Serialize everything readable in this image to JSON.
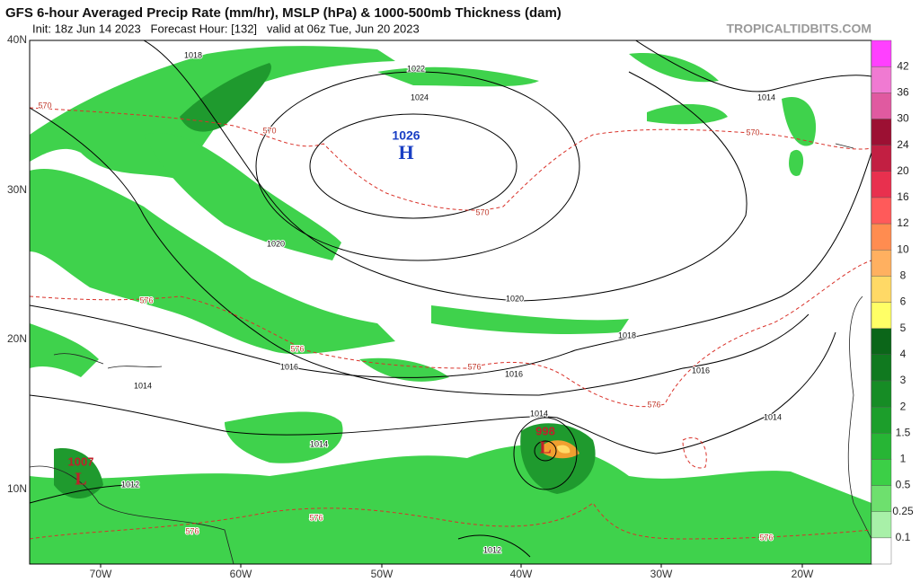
{
  "header": {
    "title": "GFS 6-hour Averaged Precip Rate (mm/hr), MSLP (hPa) & 1000-500mb Thickness (dam)",
    "subtitle": "Init: 18z Jun 14 2023   Forecast Hour: [132]   valid at 06z Tue, Jun 20 2023",
    "watermark": "TROPICALTIDBITS.COM"
  },
  "map": {
    "lat_labels": [
      "40N",
      "30N",
      "20N",
      "10N"
    ],
    "lon_labels": [
      "70W",
      "60W",
      "50W",
      "40W",
      "30W",
      "20W"
    ],
    "contour_labels": [
      "1018",
      "1022",
      "1024",
      "1014",
      "570",
      "570",
      "570",
      "570",
      "1020",
      "576",
      "1020",
      "1018",
      "576",
      "1016",
      "576",
      "1016",
      "1016",
      "1014",
      "576",
      "1014",
      "1014",
      "1014",
      "1012",
      "576",
      "576",
      "576",
      "1012"
    ],
    "pressure_centers": [
      {
        "letter": "H",
        "pressure": "1026"
      },
      {
        "letter": "L",
        "pressure": "998"
      },
      {
        "letter": "L",
        "pressure": "1007"
      }
    ]
  },
  "colorbar": {
    "labels": [
      "0.1",
      "0.25",
      "0.5",
      "1",
      "1.5",
      "2",
      "3",
      "4",
      "5",
      "6",
      "8",
      "10",
      "12",
      "16",
      "20",
      "24",
      "30",
      "36",
      "42"
    ]
  }
}
